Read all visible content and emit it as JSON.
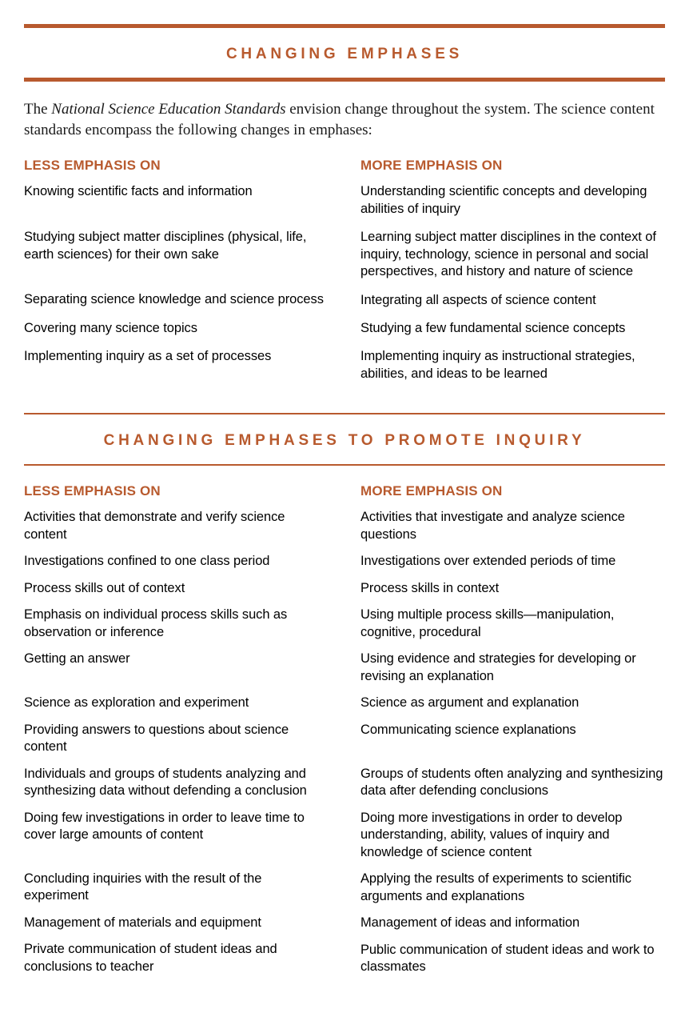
{
  "colors": {
    "accent": "#b85a2e",
    "text": "#000000",
    "background": "#ffffff"
  },
  "section1": {
    "title": "CHANGING EMPHASES",
    "intro_prefix": "The ",
    "intro_italic": "National Science Education Standards",
    "intro_suffix": " envision change throughout the system. The science content standards encompass the following changes in emphases:",
    "less_header": "LESS EMPHASIS ON",
    "more_header": "MORE EMPHASIS ON",
    "rows": [
      {
        "less": "Knowing scientific facts and information",
        "more": "Understanding scientific concepts and developing abilities of inquiry"
      },
      {
        "less": "Studying subject matter disciplines (physical, life, earth sciences) for their own sake",
        "more": "Learning subject matter disciplines in the context of inquiry, technology, science in personal and social perspectives, and history and nature of science"
      },
      {
        "less": "Separating science knowledge and science process",
        "more": "Integrating all aspects of science content"
      },
      {
        "less": "Covering many science topics",
        "more": "Studying a few fundamental science concepts"
      },
      {
        "less": "Implementing inquiry as a set of processes",
        "more": "Implementing inquiry as instructional strategies, abilities, and ideas to be learned"
      }
    ]
  },
  "section2": {
    "title": "CHANGING EMPHASES TO PROMOTE INQUIRY",
    "less_header": "LESS EMPHASIS ON",
    "more_header": "MORE EMPHASIS ON",
    "rows": [
      {
        "less": "Activities that demonstrate and verify science content",
        "more": "Activities that investigate and analyze science questions"
      },
      {
        "less": "Investigations confined to one class period",
        "more": "Investigations over extended periods of time"
      },
      {
        "less": "Process skills out of context",
        "more": "Process skills in context"
      },
      {
        "less": "Emphasis on individual process skills such as observation or inference",
        "more": "Using multiple process skills—manipulation, cognitive, procedural"
      },
      {
        "less": "Getting an answer",
        "more": "Using evidence and strategies for developing or revising an explanation"
      },
      {
        "less": "Science as exploration and experiment",
        "more": "Science as argument and explanation"
      },
      {
        "less": "Providing answers to questions about science content",
        "more": "Communicating science explanations"
      },
      {
        "less": "Individuals and groups of students analyzing and synthesizing data without defending a conclusion",
        "more": "Groups of students often analyzing and synthesizing data after defending conclusions"
      },
      {
        "less": "Doing few investigations in order to leave time to cover large amounts of content",
        "more": "Doing more investigations in order to develop understanding, ability, values of inquiry and knowledge of science content"
      },
      {
        "less": "Concluding inquiries with the result of the experiment",
        "more": "Applying the results of experiments to scientific arguments and explanations"
      },
      {
        "less": "Management of materials and equipment",
        "more": "Management of ideas and information"
      },
      {
        "less": "Private communication of student ideas and conclusions to teacher",
        "more": "Public communication of student ideas and work to classmates"
      }
    ]
  }
}
